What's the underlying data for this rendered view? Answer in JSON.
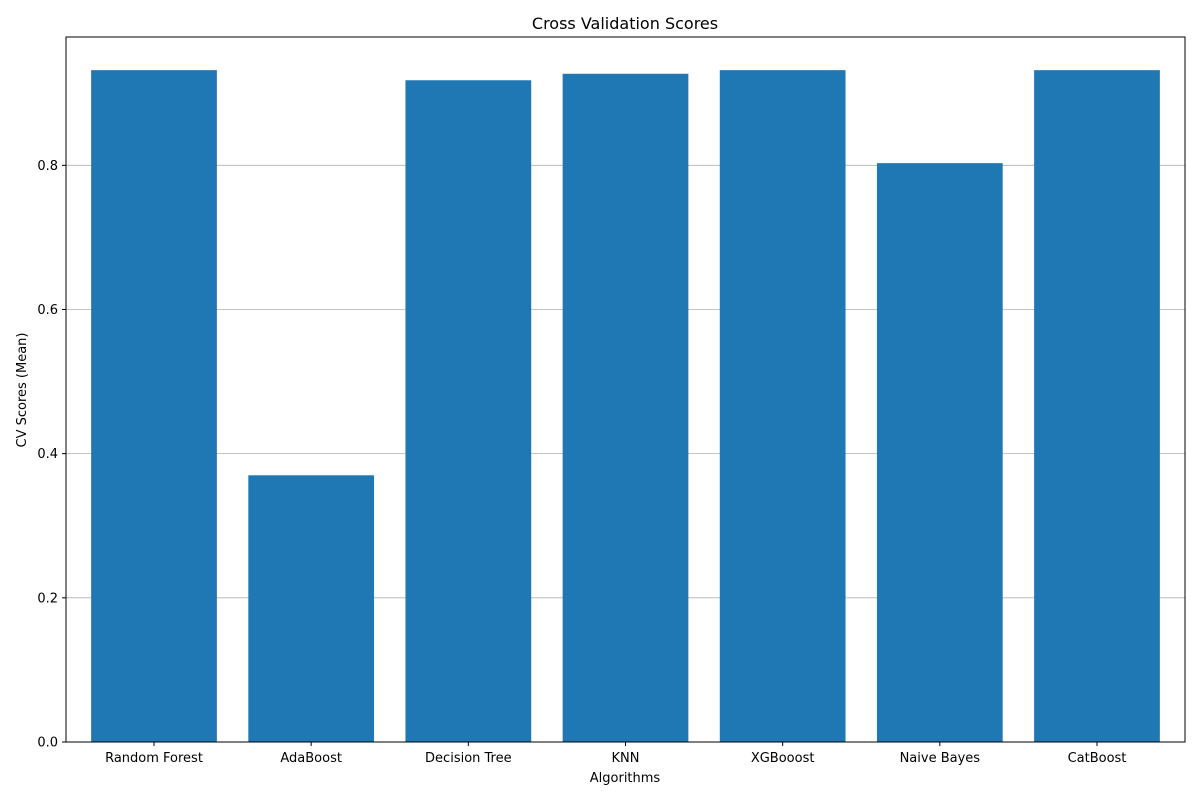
{
  "chart_data": {
    "type": "bar",
    "title": "Cross Validation Scores",
    "xlabel": "Algorithms",
    "ylabel": "CV Scores (Mean)",
    "categories": [
      "Random Forest",
      "AdaBoost",
      "Decision Tree",
      "KNN",
      "XGBooost",
      "Naive Bayes",
      "CatBoost"
    ],
    "values": [
      0.932,
      0.37,
      0.918,
      0.927,
      0.932,
      0.803,
      0.932
    ],
    "ylim": [
      0,
      0.978
    ],
    "yticks": [
      0.0,
      0.2,
      0.4,
      0.6,
      0.8
    ],
    "ytick_labels": [
      "0.0",
      "0.2",
      "0.4",
      "0.6",
      "0.8"
    ],
    "grid": "y",
    "bar_color": "#1f77b4",
    "grid_color": "#b0b0b0"
  }
}
